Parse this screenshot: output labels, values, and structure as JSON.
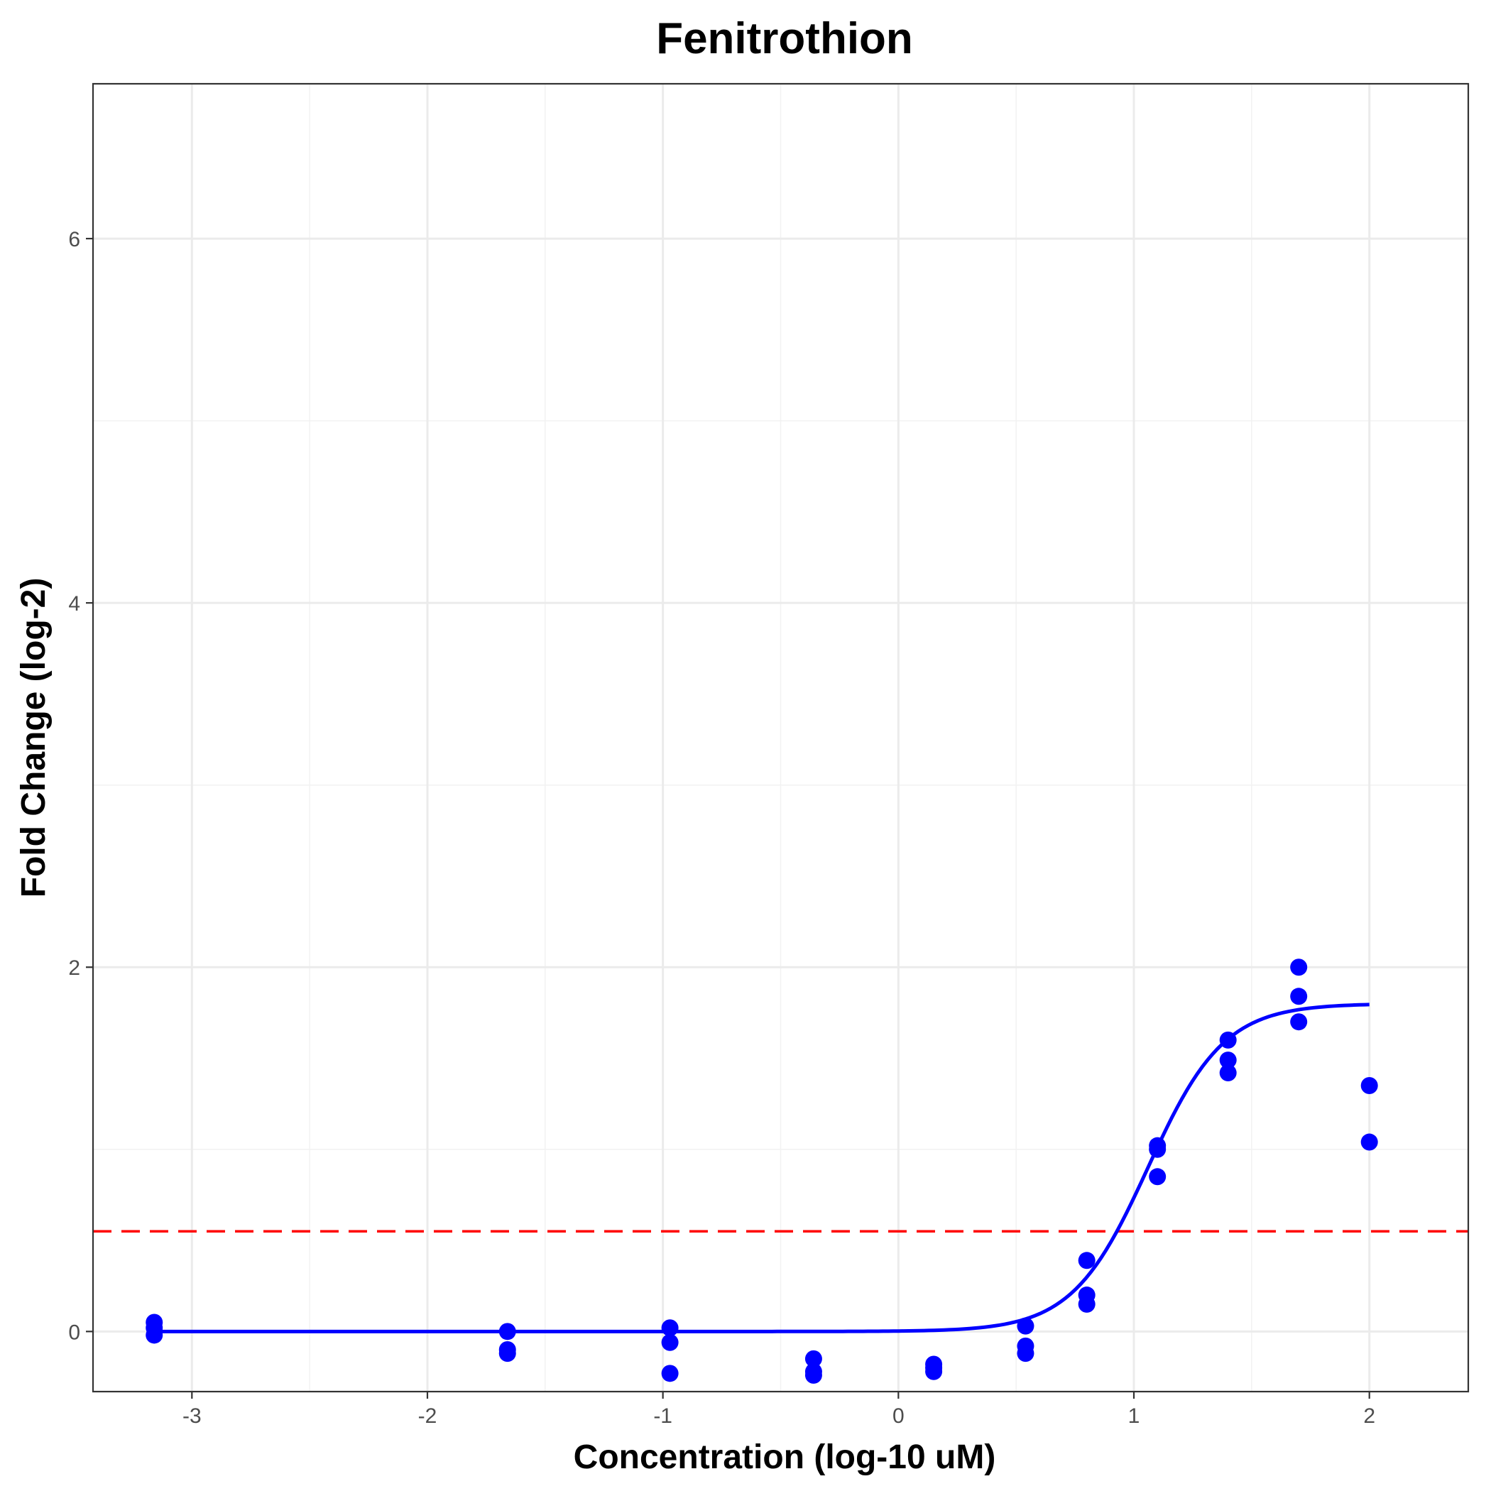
{
  "chart_data": {
    "type": "scatter",
    "title": "Fenitrothion",
    "xlabel": "Concentration (log-10 uM)",
    "ylabel": "Fold Change (log-2)",
    "xlim": [
      -3.42,
      2.42
    ],
    "ylim": [
      -0.33,
      6.85
    ],
    "x_ticks": [
      -3,
      -2,
      -1,
      0,
      1,
      2
    ],
    "x_tick_labels": [
      "-3",
      "-2",
      "-1",
      "0",
      "1",
      "2"
    ],
    "y_ticks": [
      0,
      2,
      4,
      6
    ],
    "y_tick_labels": [
      "0",
      "2",
      "4",
      "6"
    ],
    "grid": true,
    "point_color": "#0000ff",
    "curve_color": "#0000ff",
    "threshold_color": "#ff0000",
    "threshold": 0.55,
    "points": [
      {
        "x": -3.16,
        "y": 0.05
      },
      {
        "x": -3.16,
        "y": 0.02
      },
      {
        "x": -3.16,
        "y": -0.02
      },
      {
        "x": -1.66,
        "y": 0.0
      },
      {
        "x": -1.66,
        "y": -0.1
      },
      {
        "x": -1.66,
        "y": -0.12
      },
      {
        "x": -0.97,
        "y": 0.02
      },
      {
        "x": -0.97,
        "y": -0.06
      },
      {
        "x": -0.97,
        "y": -0.23
      },
      {
        "x": -0.36,
        "y": -0.15
      },
      {
        "x": -0.36,
        "y": -0.22
      },
      {
        "x": -0.36,
        "y": -0.24
      },
      {
        "x": 0.15,
        "y": -0.18
      },
      {
        "x": 0.15,
        "y": -0.2
      },
      {
        "x": 0.15,
        "y": -0.22
      },
      {
        "x": 0.54,
        "y": 0.03
      },
      {
        "x": 0.54,
        "y": -0.08
      },
      {
        "x": 0.54,
        "y": -0.12
      },
      {
        "x": 0.8,
        "y": 0.39
      },
      {
        "x": 0.8,
        "y": 0.2
      },
      {
        "x": 0.8,
        "y": 0.15
      },
      {
        "x": 1.1,
        "y": 1.02
      },
      {
        "x": 1.1,
        "y": 1.0
      },
      {
        "x": 1.1,
        "y": 0.85
      },
      {
        "x": 1.4,
        "y": 1.6
      },
      {
        "x": 1.4,
        "y": 1.49
      },
      {
        "x": 1.4,
        "y": 1.42
      },
      {
        "x": 1.7,
        "y": 2.0
      },
      {
        "x": 1.7,
        "y": 1.84
      },
      {
        "x": 1.7,
        "y": 1.7
      },
      {
        "x": 2.0,
        "y": 1.35
      },
      {
        "x": 2.0,
        "y": 1.04
      }
    ],
    "fit_curve": {
      "model": "hill",
      "bottom": 0.0,
      "top": 1.8,
      "log_ac50": 1.06,
      "hill_slope": 2.7,
      "x_range": [
        -3.16,
        2.0
      ]
    }
  }
}
